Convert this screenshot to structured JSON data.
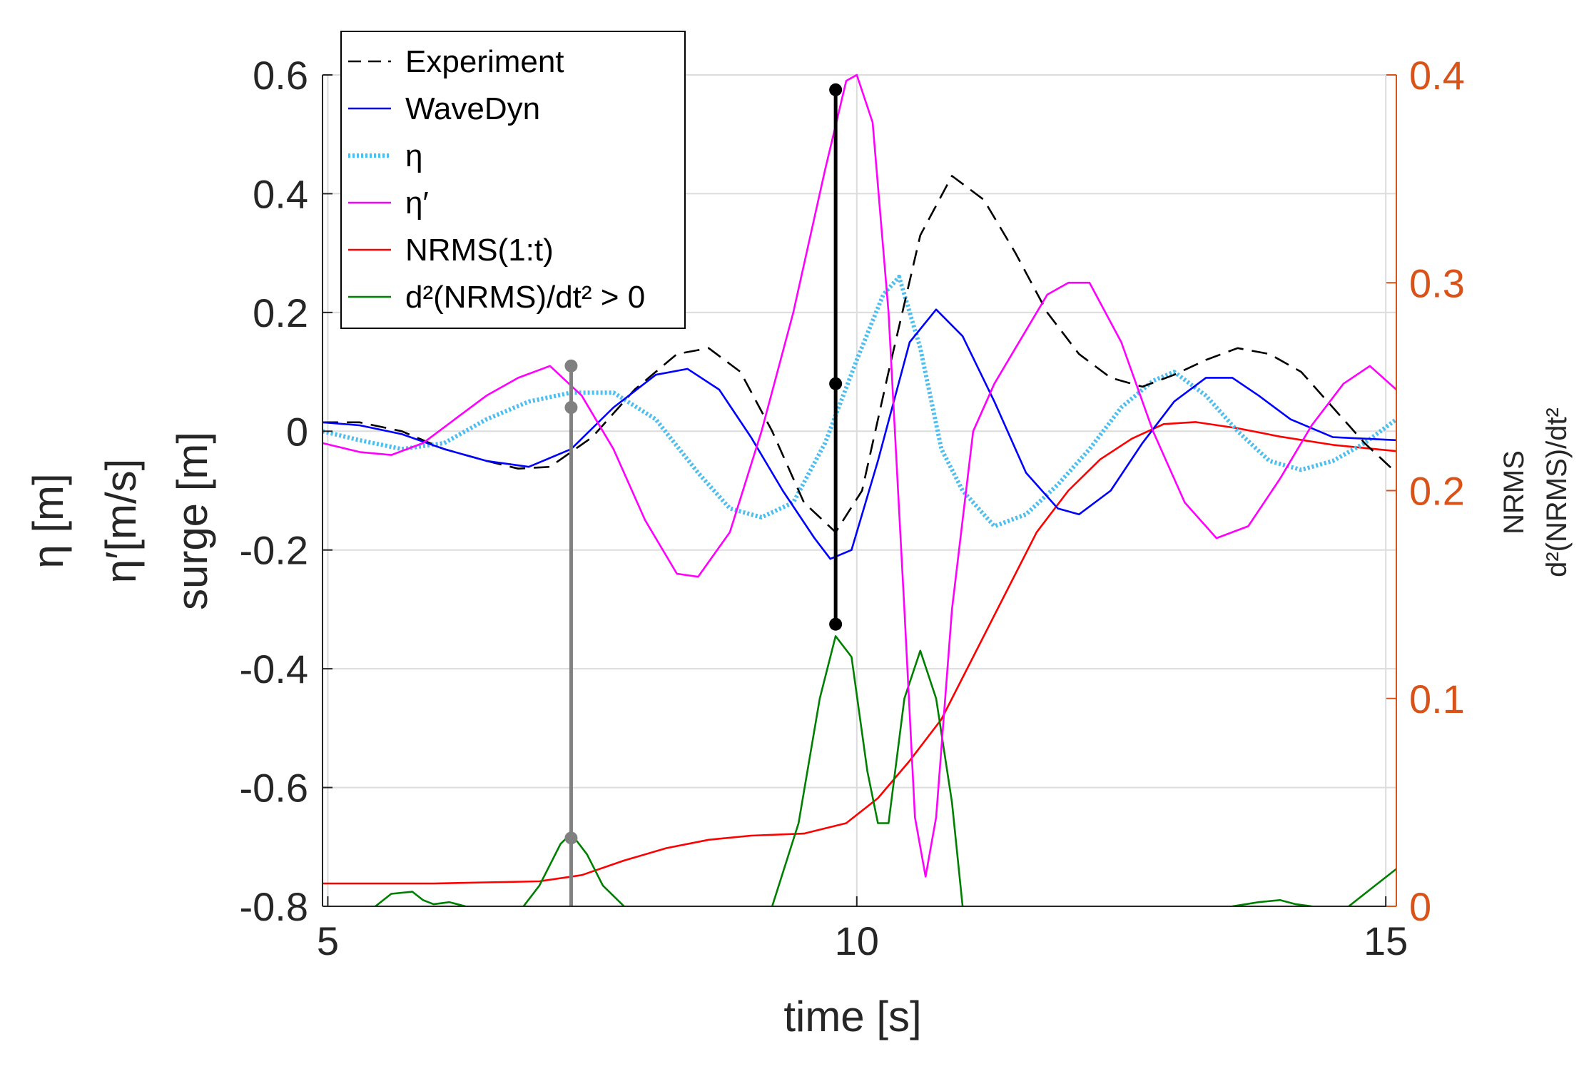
{
  "chart_data": {
    "type": "line",
    "title": "",
    "xlabel": "time [s]",
    "ylabel_lines": [
      "η [m]",
      "η′[m/s]",
      "surge [m]"
    ],
    "y2label_lines": [
      "NRMS",
      "d²(NRMS)/dt²"
    ],
    "xlim": [
      4.95,
      15.1
    ],
    "ylim": [
      -0.8,
      0.6
    ],
    "y2lim": [
      0,
      0.4
    ],
    "x_ticks": [
      5,
      10,
      15
    ],
    "x_tick_labels": [
      "5",
      "10",
      "15"
    ],
    "y_ticks": [
      -0.8,
      -0.6,
      -0.4,
      -0.2,
      0,
      0.2,
      0.4,
      0.6
    ],
    "y_tick_labels": [
      "-0.8",
      "-0.6",
      "-0.4",
      "-0.2",
      "0",
      "0.2",
      "0.4",
      "0.6"
    ],
    "y2_ticks": [
      0,
      0.1,
      0.2,
      0.3,
      0.4
    ],
    "y2_tick_labels": [
      "0",
      "0.1",
      "0.2",
      "0.3",
      "0.4"
    ],
    "grid": true,
    "legend_position": "top-left",
    "colors": {
      "experiment": "#000000",
      "wavedyn": "#0000FF",
      "eta": "#4DBEEE",
      "eta_prime": "#FF00FF",
      "nrms": "#FF0000",
      "d2nrms": "#008000",
      "marker_gray": "#808080",
      "marker_black": "#000000",
      "right_axis": "#D95319",
      "grid": "#DCDCDC"
    },
    "series": [
      {
        "key": "experiment",
        "name": "Experiment",
        "legend_label": "Experiment",
        "axis": "left",
        "style": "dashed",
        "points": [
          [
            4.95,
            0.015
          ],
          [
            5.3,
            0.015
          ],
          [
            5.7,
            0.0
          ],
          [
            6.1,
            -0.03
          ],
          [
            6.5,
            -0.05
          ],
          [
            6.8,
            -0.063
          ],
          [
            7.1,
            -0.06
          ],
          [
            7.5,
            -0.01
          ],
          [
            7.9,
            0.07
          ],
          [
            8.3,
            0.13
          ],
          [
            8.6,
            0.14
          ],
          [
            8.9,
            0.1
          ],
          [
            9.2,
            0.0
          ],
          [
            9.5,
            -0.12
          ],
          [
            9.8,
            -0.17
          ],
          [
            10.05,
            -0.1
          ],
          [
            10.3,
            0.1
          ],
          [
            10.6,
            0.33
          ],
          [
            10.9,
            0.43
          ],
          [
            11.2,
            0.39
          ],
          [
            11.5,
            0.3
          ],
          [
            11.8,
            0.2
          ],
          [
            12.1,
            0.13
          ],
          [
            12.4,
            0.09
          ],
          [
            12.7,
            0.075
          ],
          [
            13.0,
            0.095
          ],
          [
            13.3,
            0.12
          ],
          [
            13.6,
            0.14
          ],
          [
            13.9,
            0.13
          ],
          [
            14.2,
            0.1
          ],
          [
            14.5,
            0.04
          ],
          [
            14.8,
            -0.02
          ],
          [
            15.1,
            -0.07
          ]
        ]
      },
      {
        "key": "wavedyn",
        "name": "WaveDyn",
        "legend_label": "WaveDyn",
        "axis": "left",
        "style": "solid",
        "points": [
          [
            4.95,
            0.015
          ],
          [
            5.3,
            0.01
          ],
          [
            5.7,
            -0.005
          ],
          [
            6.1,
            -0.03
          ],
          [
            6.5,
            -0.05
          ],
          [
            6.9,
            -0.06
          ],
          [
            7.3,
            -0.03
          ],
          [
            7.7,
            0.04
          ],
          [
            8.1,
            0.095
          ],
          [
            8.4,
            0.105
          ],
          [
            8.7,
            0.07
          ],
          [
            9.0,
            -0.01
          ],
          [
            9.3,
            -0.1
          ],
          [
            9.6,
            -0.18
          ],
          [
            9.75,
            -0.215
          ],
          [
            9.95,
            -0.2
          ],
          [
            10.2,
            -0.05
          ],
          [
            10.5,
            0.15
          ],
          [
            10.75,
            0.205
          ],
          [
            11.0,
            0.16
          ],
          [
            11.3,
            0.05
          ],
          [
            11.6,
            -0.07
          ],
          [
            11.9,
            -0.13
          ],
          [
            12.1,
            -0.14
          ],
          [
            12.4,
            -0.1
          ],
          [
            12.7,
            -0.02
          ],
          [
            13.0,
            0.05
          ],
          [
            13.3,
            0.09
          ],
          [
            13.55,
            0.09
          ],
          [
            13.8,
            0.06
          ],
          [
            14.1,
            0.02
          ],
          [
            14.5,
            -0.01
          ],
          [
            15.1,
            -0.015
          ]
        ]
      },
      {
        "key": "eta",
        "name": "η",
        "legend_label": "η",
        "axis": "left",
        "style": "dotted",
        "points": [
          [
            4.95,
            0.0
          ],
          [
            5.3,
            -0.015
          ],
          [
            5.7,
            -0.03
          ],
          [
            6.1,
            -0.02
          ],
          [
            6.5,
            0.02
          ],
          [
            6.9,
            0.05
          ],
          [
            7.3,
            0.065
          ],
          [
            7.7,
            0.065
          ],
          [
            8.1,
            0.02
          ],
          [
            8.5,
            -0.07
          ],
          [
            8.8,
            -0.13
          ],
          [
            9.1,
            -0.145
          ],
          [
            9.4,
            -0.12
          ],
          [
            9.7,
            -0.02
          ],
          [
            10.0,
            0.12
          ],
          [
            10.25,
            0.23
          ],
          [
            10.4,
            0.26
          ],
          [
            10.6,
            0.14
          ],
          [
            10.8,
            -0.03
          ],
          [
            11.0,
            -0.1
          ],
          [
            11.3,
            -0.16
          ],
          [
            11.6,
            -0.14
          ],
          [
            11.9,
            -0.09
          ],
          [
            12.2,
            -0.03
          ],
          [
            12.5,
            0.04
          ],
          [
            12.8,
            0.085
          ],
          [
            13.0,
            0.1
          ],
          [
            13.3,
            0.06
          ],
          [
            13.6,
            0.0
          ],
          [
            13.9,
            -0.05
          ],
          [
            14.2,
            -0.065
          ],
          [
            14.5,
            -0.05
          ],
          [
            14.8,
            -0.02
          ],
          [
            15.1,
            0.02
          ]
        ]
      },
      {
        "key": "eta_prime",
        "name": "η′",
        "legend_label": "η′",
        "axis": "left",
        "style": "solid",
        "points": [
          [
            4.95,
            -0.02
          ],
          [
            5.3,
            -0.035
          ],
          [
            5.6,
            -0.04
          ],
          [
            5.9,
            -0.02
          ],
          [
            6.2,
            0.02
          ],
          [
            6.5,
            0.06
          ],
          [
            6.8,
            0.09
          ],
          [
            7.1,
            0.11
          ],
          [
            7.4,
            0.06
          ],
          [
            7.7,
            -0.03
          ],
          [
            8.0,
            -0.15
          ],
          [
            8.3,
            -0.24
          ],
          [
            8.5,
            -0.245
          ],
          [
            8.8,
            -0.17
          ],
          [
            9.1,
            0.0
          ],
          [
            9.4,
            0.2
          ],
          [
            9.7,
            0.44
          ],
          [
            9.9,
            0.59
          ],
          [
            10.0,
            0.6
          ],
          [
            10.15,
            0.52
          ],
          [
            10.3,
            0.2
          ],
          [
            10.45,
            -0.3
          ],
          [
            10.55,
            -0.65
          ],
          [
            10.65,
            -0.75
          ],
          [
            10.75,
            -0.65
          ],
          [
            10.9,
            -0.3
          ],
          [
            11.1,
            0.0
          ],
          [
            11.3,
            0.08
          ],
          [
            11.5,
            0.14
          ],
          [
            11.8,
            0.23
          ],
          [
            12.0,
            0.25
          ],
          [
            12.2,
            0.25
          ],
          [
            12.5,
            0.15
          ],
          [
            12.8,
            0.0
          ],
          [
            13.1,
            -0.12
          ],
          [
            13.4,
            -0.18
          ],
          [
            13.7,
            -0.16
          ],
          [
            14.0,
            -0.08
          ],
          [
            14.3,
            0.01
          ],
          [
            14.6,
            0.08
          ],
          [
            14.85,
            0.11
          ],
          [
            15.1,
            0.07
          ]
        ]
      },
      {
        "key": "nrms",
        "name": "NRMS(1:t)",
        "legend_label": "NRMS(1:t)",
        "axis": "right",
        "style": "solid",
        "points": [
          [
            4.95,
            0.011
          ],
          [
            6.0,
            0.011
          ],
          [
            7.0,
            0.012
          ],
          [
            7.4,
            0.015
          ],
          [
            7.8,
            0.022
          ],
          [
            8.2,
            0.028
          ],
          [
            8.6,
            0.032
          ],
          [
            9.0,
            0.034
          ],
          [
            9.5,
            0.035
          ],
          [
            9.9,
            0.04
          ],
          [
            10.2,
            0.052
          ],
          [
            10.5,
            0.07
          ],
          [
            10.8,
            0.09
          ],
          [
            11.1,
            0.12
          ],
          [
            11.4,
            0.15
          ],
          [
            11.7,
            0.18
          ],
          [
            12.0,
            0.2
          ],
          [
            12.3,
            0.215
          ],
          [
            12.6,
            0.225
          ],
          [
            12.9,
            0.232
          ],
          [
            13.2,
            0.233
          ],
          [
            13.6,
            0.23
          ],
          [
            14.0,
            0.226
          ],
          [
            14.5,
            0.222
          ],
          [
            15.1,
            0.219
          ]
        ]
      },
      {
        "key": "d2nrms",
        "name": "d²(NRMS)/dt² > 0",
        "legend_label": "d²(NRMS)/dt² > 0",
        "axis": "right",
        "style": "solid",
        "segments": [
          [
            [
              5.45,
              0
            ],
            [
              5.6,
              0.006
            ],
            [
              5.8,
              0.007
            ],
            [
              5.9,
              0.003
            ],
            [
              6.0,
              0.001
            ],
            [
              6.15,
              0.002
            ],
            [
              6.3,
              0
            ]
          ],
          [
            [
              6.85,
              0
            ],
            [
              7.0,
              0.01
            ],
            [
              7.2,
              0.03
            ],
            [
              7.3,
              0.035
            ],
            [
              7.45,
              0.025
            ],
            [
              7.6,
              0.01
            ],
            [
              7.8,
              0
            ]
          ],
          [
            [
              9.2,
              0
            ],
            [
              9.45,
              0.04
            ],
            [
              9.65,
              0.1
            ],
            [
              9.8,
              0.13
            ],
            [
              9.95,
              0.12
            ],
            [
              10.1,
              0.065
            ],
            [
              10.2,
              0.04
            ],
            [
              10.3,
              0.04
            ],
            [
              10.45,
              0.1
            ],
            [
              10.6,
              0.123
            ],
            [
              10.75,
              0.1
            ],
            [
              10.9,
              0.05
            ],
            [
              11.0,
              0
            ]
          ],
          [
            [
              13.55,
              0
            ],
            [
              13.8,
              0.002
            ],
            [
              14.0,
              0.003
            ],
            [
              14.15,
              0.001
            ],
            [
              14.3,
              0
            ]
          ],
          [
            [
              14.65,
              0
            ],
            [
              14.9,
              0.01
            ],
            [
              15.1,
              0.018
            ]
          ]
        ]
      }
    ],
    "markers": [
      {
        "key": "gray_marker",
        "x": 7.3,
        "color": "gray",
        "y_points": [
          0.11,
          0.04,
          -0.685
        ],
        "y_range": [
          -0.8,
          0.11
        ]
      },
      {
        "key": "black_marker",
        "x": 9.8,
        "color": "black",
        "y_points": [
          0.575,
          0.08,
          -0.325
        ],
        "y_range": [
          -0.325,
          0.575
        ]
      }
    ]
  }
}
